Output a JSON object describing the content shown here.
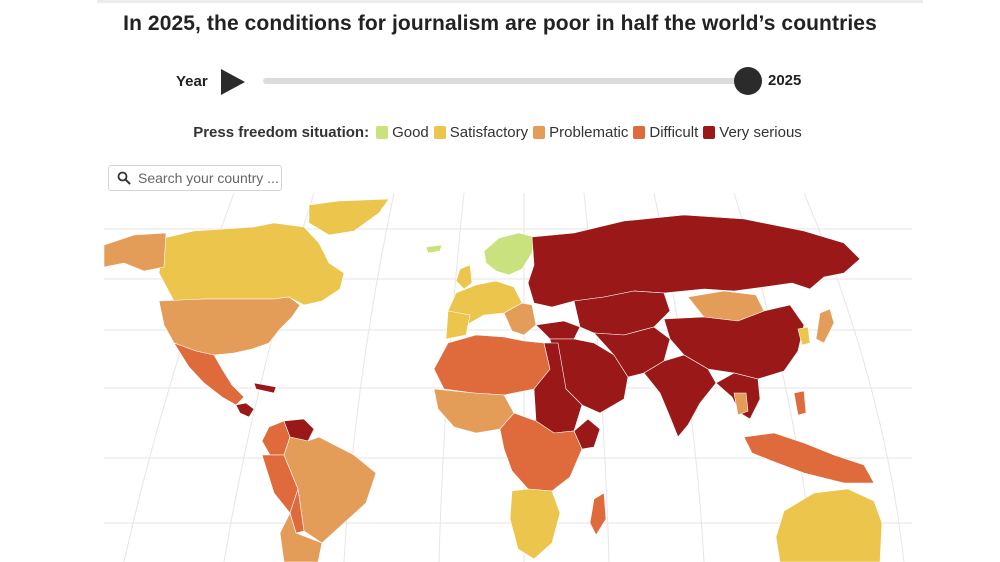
{
  "title": "In 2025, the conditions for journalism are poor in half the world’s countries",
  "slider": {
    "label": "Year",
    "value": "2025",
    "position": 1.0
  },
  "legend": {
    "title": "Press freedom situation:",
    "items": [
      {
        "label": "Good",
        "color": "#c9e27d"
      },
      {
        "label": "Satisfactory",
        "color": "#ebc54c"
      },
      {
        "label": "Problematic",
        "color": "#e39d58"
      },
      {
        "label": "Difficult",
        "color": "#df6a3b"
      },
      {
        "label": "Very serious",
        "color": "#9a1818"
      }
    ]
  },
  "search": {
    "placeholder": "Search your country ..."
  },
  "map": {
    "ocean_color": "#ffffff",
    "graticule_color": "#e6e6e6",
    "colors": {
      "good": "#c9e27d",
      "satisfactory": "#ebc54c",
      "problematic": "#e39d58",
      "difficult": "#df6a3b",
      "very_serious": "#9a1818"
    }
  }
}
